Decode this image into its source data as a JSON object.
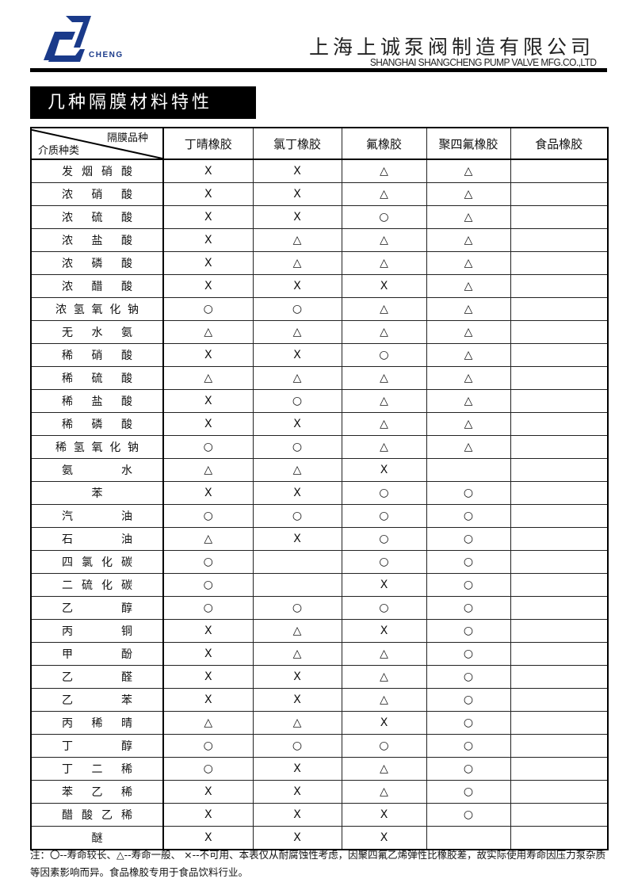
{
  "header": {
    "logo_text": "CHENG",
    "company_cn": "上海上诚泵阀制造有限公司",
    "company_en": "SHANGHAI SHANGCHENG PUMP VALVE MFG.CO.,LTD",
    "brand_color": "#1a3a8a"
  },
  "title": "几种隔膜材料特性",
  "table": {
    "corner_top": "隔膜品种",
    "corner_bottom": "介质种类",
    "columns": [
      "丁晴橡胶",
      "氯丁橡胶",
      "氟橡胶",
      "聚四氟橡胶",
      "食品橡胶"
    ],
    "rows": [
      {
        "medium": "发烟硝酸",
        "values": [
          "X",
          "X",
          "△",
          "△",
          ""
        ]
      },
      {
        "medium": "浓硝酸",
        "values": [
          "X",
          "X",
          "△",
          "△",
          ""
        ]
      },
      {
        "medium": "浓硫酸",
        "values": [
          "X",
          "X",
          "○",
          "△",
          ""
        ]
      },
      {
        "medium": "浓盐酸",
        "values": [
          "X",
          "△",
          "△",
          "△",
          ""
        ]
      },
      {
        "medium": "浓磷酸",
        "values": [
          "X",
          "△",
          "△",
          "△",
          ""
        ]
      },
      {
        "medium": "浓醋酸",
        "values": [
          "X",
          "X",
          "X",
          "△",
          ""
        ]
      },
      {
        "medium": "浓氢氧化钠",
        "values": [
          "○",
          "○",
          "△",
          "△",
          ""
        ]
      },
      {
        "medium": "无水氨",
        "values": [
          "△",
          "△",
          "△",
          "△",
          ""
        ]
      },
      {
        "medium": "稀硝酸",
        "values": [
          "X",
          "X",
          "○",
          "△",
          ""
        ]
      },
      {
        "medium": "稀硫酸",
        "values": [
          "△",
          "△",
          "△",
          "△",
          ""
        ]
      },
      {
        "medium": "稀盐酸",
        "values": [
          "X",
          "○",
          "△",
          "△",
          ""
        ]
      },
      {
        "medium": "稀磷酸",
        "values": [
          "X",
          "X",
          "△",
          "△",
          ""
        ]
      },
      {
        "medium": "稀氢氧化钠",
        "values": [
          "○",
          "○",
          "△",
          "△",
          ""
        ]
      },
      {
        "medium": "氨水",
        "values": [
          "△",
          "△",
          "X",
          "",
          ""
        ]
      },
      {
        "medium": "苯",
        "values": [
          "X",
          "X",
          "○",
          "○",
          ""
        ]
      },
      {
        "medium": "汽油",
        "values": [
          "○",
          "○",
          "○",
          "○",
          ""
        ]
      },
      {
        "medium": "石油",
        "values": [
          "△",
          "X",
          "○",
          "○",
          ""
        ]
      },
      {
        "medium": "四氯化碳",
        "values": [
          "○",
          "",
          "○",
          "○",
          ""
        ]
      },
      {
        "medium": "二硫化碳",
        "values": [
          "○",
          "",
          "X",
          "○",
          ""
        ]
      },
      {
        "medium": "乙醇",
        "values": [
          "○",
          "○",
          "○",
          "○",
          ""
        ]
      },
      {
        "medium": "丙铜",
        "values": [
          "X",
          "△",
          "X",
          "○",
          ""
        ]
      },
      {
        "medium": "甲酚",
        "values": [
          "X",
          "△",
          "△",
          "○",
          ""
        ]
      },
      {
        "medium": "乙醛",
        "values": [
          "X",
          "X",
          "△",
          "○",
          ""
        ]
      },
      {
        "medium": "乙苯",
        "values": [
          "X",
          "X",
          "△",
          "○",
          ""
        ]
      },
      {
        "medium": "丙稀晴",
        "values": [
          "△",
          "△",
          "X",
          "○",
          ""
        ]
      },
      {
        "medium": "丁醇",
        "values": [
          "○",
          "○",
          "○",
          "○",
          ""
        ]
      },
      {
        "medium": "丁二稀",
        "values": [
          "○",
          "X",
          "△",
          "○",
          ""
        ]
      },
      {
        "medium": "苯乙稀",
        "values": [
          "X",
          "X",
          "△",
          "○",
          ""
        ]
      },
      {
        "medium": "醋酸乙稀",
        "values": [
          "X",
          "X",
          "X",
          "○",
          ""
        ]
      },
      {
        "medium": "醚",
        "values": [
          "X",
          "X",
          "X",
          "",
          ""
        ]
      }
    ]
  },
  "note": "注：〇--寿命较长、△--寿命一般、 ×--不可用、本表仅从耐腐蚀性考虑，因聚四氟乙烯弹性比橡胶差，故实际使用寿命因压力泵杂质等因素影响而异。食品橡胶专用于食品饮料行业。"
}
